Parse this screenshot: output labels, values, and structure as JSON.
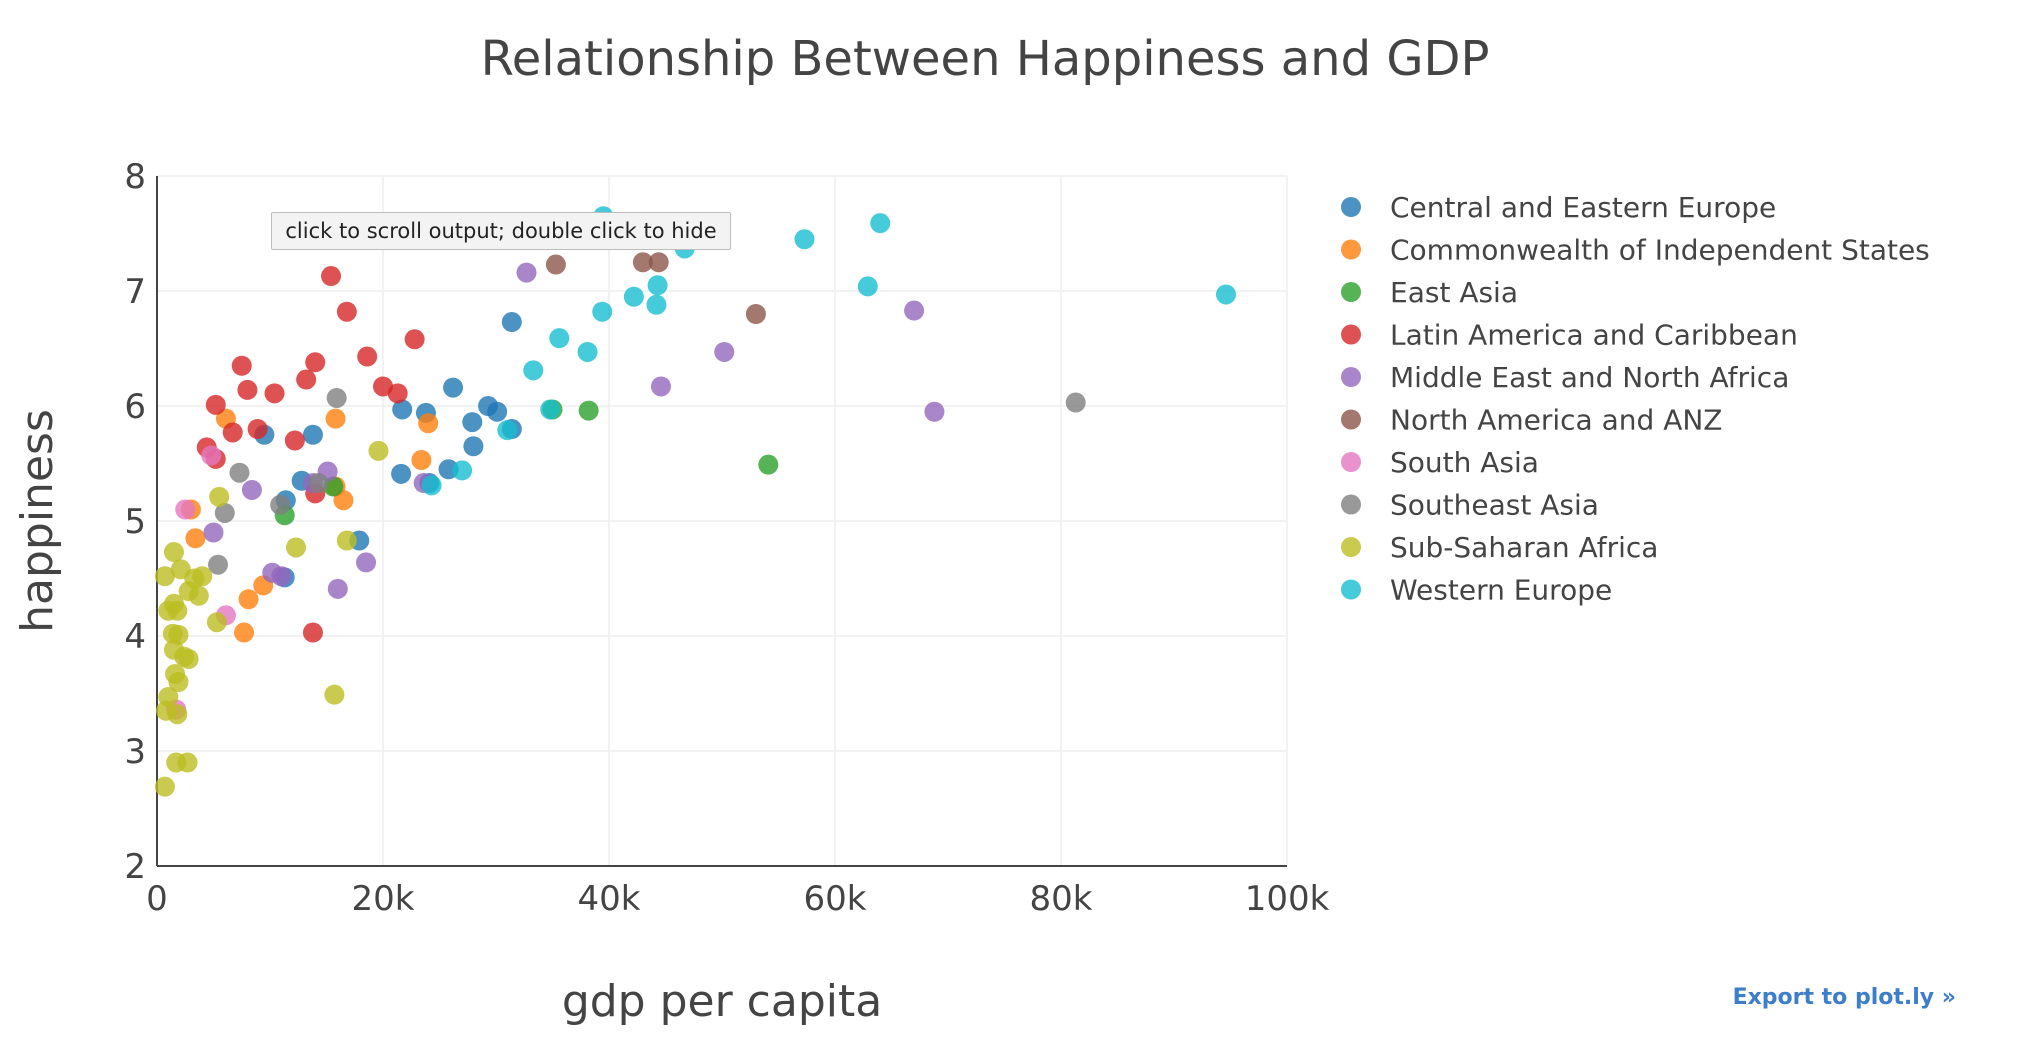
{
  "tooltip": {
    "text": "click to scroll output; double click to hide"
  },
  "export": {
    "label": "Export to plot.ly »"
  },
  "chart_data": {
    "type": "scatter",
    "title": "Relationship Between Happiness and GDP",
    "xlabel": "gdp per capita",
    "ylabel": "happiness",
    "xlim": [
      0,
      100000
    ],
    "ylim": [
      2,
      8
    ],
    "x_ticks": [
      0,
      20000,
      40000,
      60000,
      80000,
      100000
    ],
    "x_tick_labels": [
      "0",
      "20k",
      "40k",
      "60k",
      "80k",
      "100k"
    ],
    "y_ticks": [
      2,
      3,
      4,
      5,
      6,
      7,
      8
    ],
    "y_tick_labels": [
      "2",
      "3",
      "4",
      "5",
      "6",
      "7",
      "8"
    ],
    "grid": true,
    "legend_position": "right",
    "series": [
      {
        "name": "Central and Eastern Europe",
        "color": "#1f77b4",
        "points": [
          [
            31400,
            6.73
          ],
          [
            21700,
            5.97
          ],
          [
            23800,
            5.94
          ],
          [
            26200,
            6.16
          ],
          [
            29300,
            6.0
          ],
          [
            30100,
            5.95
          ],
          [
            27900,
            5.86
          ],
          [
            28000,
            5.65
          ],
          [
            31400,
            5.8
          ],
          [
            21600,
            5.41
          ],
          [
            25800,
            5.45
          ],
          [
            24100,
            5.33
          ],
          [
            13800,
            5.75
          ],
          [
            9500,
            5.75
          ],
          [
            11400,
            5.18
          ],
          [
            12800,
            5.35
          ],
          [
            17900,
            4.83
          ],
          [
            11300,
            4.51
          ]
        ]
      },
      {
        "name": "Commonwealth of Independent States",
        "color": "#ff7f0e",
        "points": [
          [
            6100,
            5.89
          ],
          [
            15800,
            5.89
          ],
          [
            24000,
            5.85
          ],
          [
            23400,
            5.53
          ],
          [
            15800,
            5.3
          ],
          [
            16500,
            5.18
          ],
          [
            3000,
            5.1
          ],
          [
            3400,
            4.85
          ],
          [
            9400,
            4.44
          ],
          [
            8100,
            4.32
          ],
          [
            7700,
            4.03
          ]
        ]
      },
      {
        "name": "East Asia",
        "color": "#2ca02c",
        "points": [
          [
            35000,
            5.97
          ],
          [
            38200,
            5.96
          ],
          [
            54100,
            5.49
          ],
          [
            11300,
            5.05
          ],
          [
            15600,
            5.3
          ]
        ]
      },
      {
        "name": "Latin America and Caribbean",
        "color": "#d62728",
        "points": [
          [
            15400,
            7.13
          ],
          [
            16800,
            6.82
          ],
          [
            22800,
            6.58
          ],
          [
            7500,
            6.35
          ],
          [
            14000,
            6.38
          ],
          [
            18600,
            6.43
          ],
          [
            13200,
            6.23
          ],
          [
            8000,
            6.14
          ],
          [
            10400,
            6.11
          ],
          [
            20000,
            6.17
          ],
          [
            21300,
            6.11
          ],
          [
            5200,
            6.01
          ],
          [
            6700,
            5.77
          ],
          [
            8900,
            5.8
          ],
          [
            12200,
            5.7
          ],
          [
            4400,
            5.64
          ],
          [
            5200,
            5.54
          ],
          [
            14000,
            5.24
          ],
          [
            13800,
            4.03
          ]
        ]
      },
      {
        "name": "Middle East and North Africa",
        "color": "#9467bd",
        "points": [
          [
            32700,
            7.16
          ],
          [
            50200,
            6.47
          ],
          [
            67000,
            6.83
          ],
          [
            44600,
            6.17
          ],
          [
            68800,
            5.95
          ],
          [
            15100,
            5.43
          ],
          [
            13800,
            5.33
          ],
          [
            8400,
            5.27
          ],
          [
            5000,
            4.9
          ],
          [
            10200,
            4.55
          ],
          [
            18500,
            4.64
          ],
          [
            16000,
            4.41
          ],
          [
            11000,
            4.52
          ],
          [
            23600,
            5.33
          ]
        ]
      },
      {
        "name": "North America and ANZ",
        "color": "#8c564b",
        "points": [
          [
            35300,
            7.23
          ],
          [
            43000,
            7.25
          ],
          [
            44400,
            7.25
          ],
          [
            53000,
            6.8
          ]
        ]
      },
      {
        "name": "South Asia",
        "color": "#e377c2",
        "points": [
          [
            2500,
            5.1
          ],
          [
            4800,
            5.57
          ],
          [
            6100,
            4.18
          ],
          [
            1700,
            3.36
          ]
        ]
      },
      {
        "name": "Southeast Asia",
        "color": "#7f7f7f",
        "points": [
          [
            15900,
            6.07
          ],
          [
            81300,
            6.03
          ],
          [
            7300,
            5.42
          ],
          [
            10900,
            5.14
          ],
          [
            6000,
            5.07
          ],
          [
            5400,
            4.62
          ],
          [
            14300,
            5.33
          ]
        ]
      },
      {
        "name": "Sub-Saharan Africa",
        "color": "#bcbd22",
        "points": [
          [
            19600,
            5.61
          ],
          [
            5500,
            5.21
          ],
          [
            12300,
            4.77
          ],
          [
            16800,
            4.83
          ],
          [
            1500,
            4.73
          ],
          [
            2100,
            4.58
          ],
          [
            3300,
            4.5
          ],
          [
            3700,
            4.35
          ],
          [
            4000,
            4.52
          ],
          [
            2800,
            4.39
          ],
          [
            700,
            4.52
          ],
          [
            1500,
            4.28
          ],
          [
            1000,
            4.22
          ],
          [
            1800,
            4.22
          ],
          [
            1400,
            4.02
          ],
          [
            1900,
            4.01
          ],
          [
            1500,
            3.88
          ],
          [
            2400,
            3.82
          ],
          [
            2800,
            3.8
          ],
          [
            1600,
            3.67
          ],
          [
            1900,
            3.6
          ],
          [
            1000,
            3.47
          ],
          [
            800,
            3.35
          ],
          [
            1800,
            3.32
          ],
          [
            1700,
            2.9
          ],
          [
            2700,
            2.9
          ],
          [
            700,
            2.69
          ],
          [
            15700,
            3.49
          ],
          [
            5300,
            4.12
          ]
        ]
      },
      {
        "name": "Western Europe",
        "color": "#17becf",
        "points": [
          [
            39500,
            7.65
          ],
          [
            46700,
            7.37
          ],
          [
            57300,
            7.45
          ],
          [
            64000,
            7.59
          ],
          [
            62900,
            7.04
          ],
          [
            44300,
            7.05
          ],
          [
            42200,
            6.95
          ],
          [
            44200,
            6.88
          ],
          [
            39400,
            6.82
          ],
          [
            94600,
            6.97
          ],
          [
            35600,
            6.59
          ],
          [
            33300,
            6.31
          ],
          [
            38100,
            6.47
          ],
          [
            34800,
            5.97
          ],
          [
            31000,
            5.79
          ],
          [
            27000,
            5.44
          ],
          [
            24300,
            5.31
          ]
        ]
      }
    ]
  }
}
